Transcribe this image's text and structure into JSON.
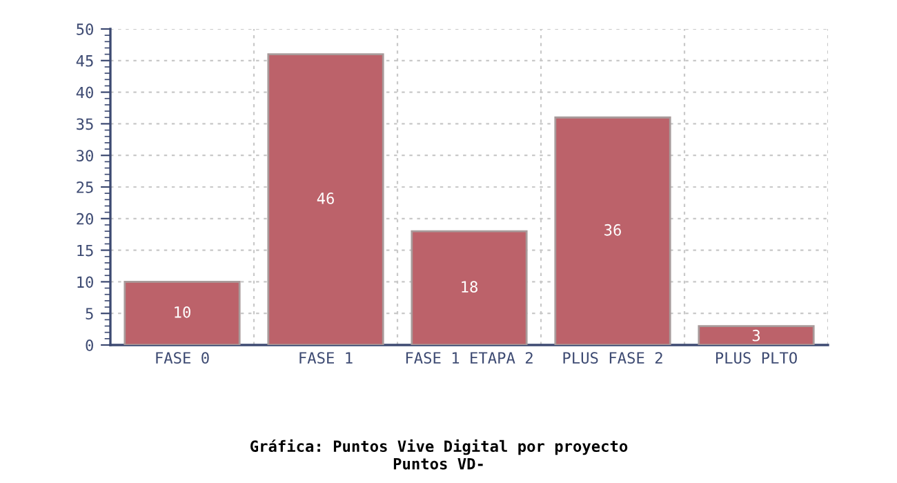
{
  "chart_data": {
    "type": "bar",
    "title": "Gráfica: Puntos Vive Digital por proyecto",
    "subtitle": "Puntos VD-",
    "categories": [
      "FASE 0",
      "FASE 1",
      "FASE 1 ETAPA 2",
      "PLUS FASE 2",
      "PLUS PLTO"
    ],
    "values": [
      10,
      46,
      18,
      36,
      3
    ],
    "color": "#bc626a",
    "ylim": [
      0,
      50
    ],
    "yticks": [
      0,
      5,
      10,
      15,
      20,
      25,
      30,
      35,
      40,
      45,
      50
    ],
    "grid": true,
    "data_labels": true
  }
}
